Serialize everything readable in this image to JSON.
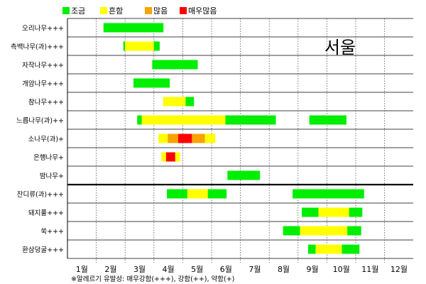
{
  "chart_data": {
    "type": "timeline",
    "title": "",
    "region_label": "서울",
    "legend": [
      {
        "key": "low",
        "label": "조금",
        "color": "#00ee00"
      },
      {
        "key": "common",
        "label": "흔함",
        "color": "#ffff00"
      },
      {
        "key": "many",
        "label": "많음",
        "color": "#f7a300"
      },
      {
        "key": "very_many",
        "label": "매우많음",
        "color": "#ff0000"
      }
    ],
    "x_axis": {
      "labels": [
        "1월",
        "2월",
        "3월",
        "4월",
        "5월",
        "6월",
        "7월",
        "8월",
        "9월",
        "10월",
        "11월",
        "12월"
      ],
      "range": [
        0,
        12
      ]
    },
    "footnote": "※알레르기 유발성: 매우강함(+++), 강함(++), 약함(+)",
    "rows": [
      {
        "label": "오리나무+++",
        "segments": [
          {
            "start": 1.25,
            "end": 3.33,
            "level": "low"
          }
        ]
      },
      {
        "label": "측백나무(과)+++",
        "segments": [
          {
            "start": 1.94,
            "end": 2.0,
            "level": "low"
          },
          {
            "start": 2.0,
            "end": 3.0,
            "level": "common"
          },
          {
            "start": 3.0,
            "end": 3.2,
            "level": "low"
          }
        ]
      },
      {
        "label": "자작나무+++",
        "segments": [
          {
            "start": 2.94,
            "end": 4.52,
            "level": "low"
          }
        ]
      },
      {
        "label": "개암나무+++",
        "segments": [
          {
            "start": 2.29,
            "end": 3.55,
            "level": "low"
          }
        ]
      },
      {
        "label": "참나무+++",
        "segments": [
          {
            "start": 3.32,
            "end": 4.1,
            "level": "common"
          },
          {
            "start": 4.1,
            "end": 4.39,
            "level": "low"
          }
        ]
      },
      {
        "label": "느릅나무(과)++",
        "segments": [
          {
            "start": 2.42,
            "end": 2.58,
            "level": "low"
          },
          {
            "start": 2.58,
            "end": 5.48,
            "level": "common"
          },
          {
            "start": 5.48,
            "end": 7.23,
            "level": "low"
          },
          {
            "start": 8.39,
            "end": 9.68,
            "level": "low"
          }
        ]
      },
      {
        "label": "소나무(과)+",
        "segments": [
          {
            "start": 3.16,
            "end": 3.48,
            "level": "common"
          },
          {
            "start": 3.48,
            "end": 3.84,
            "level": "many"
          },
          {
            "start": 3.84,
            "end": 4.32,
            "level": "very_many"
          },
          {
            "start": 4.32,
            "end": 4.77,
            "level": "many"
          },
          {
            "start": 4.77,
            "end": 5.13,
            "level": "common"
          }
        ]
      },
      {
        "label": "은행나무+",
        "segments": [
          {
            "start": 3.26,
            "end": 3.42,
            "level": "common"
          },
          {
            "start": 3.42,
            "end": 3.74,
            "level": "very_many"
          },
          {
            "start": 3.74,
            "end": 3.9,
            "level": "common"
          }
        ]
      },
      {
        "label": "밤나무+",
        "segments": [
          {
            "start": 5.55,
            "end": 6.68,
            "level": "low"
          }
        ]
      },
      {
        "label": "잔디류(과)+++",
        "segments": [
          {
            "start": 3.45,
            "end": 4.16,
            "level": "low"
          },
          {
            "start": 4.16,
            "end": 4.87,
            "level": "common"
          },
          {
            "start": 4.87,
            "end": 5.52,
            "level": "low"
          },
          {
            "start": 7.81,
            "end": 10.29,
            "level": "low"
          }
        ]
      },
      {
        "label": "돼지풀+++",
        "segments": [
          {
            "start": 8.13,
            "end": 8.71,
            "level": "low"
          },
          {
            "start": 8.71,
            "end": 9.77,
            "level": "common"
          },
          {
            "start": 9.77,
            "end": 10.23,
            "level": "low"
          }
        ]
      },
      {
        "label": "쑥+++",
        "segments": [
          {
            "start": 7.48,
            "end": 8.07,
            "level": "low"
          },
          {
            "start": 8.07,
            "end": 9.71,
            "level": "common"
          },
          {
            "start": 9.71,
            "end": 10.19,
            "level": "low"
          }
        ]
      },
      {
        "label": "환삼덩굴+++",
        "segments": [
          {
            "start": 8.35,
            "end": 8.61,
            "level": "low"
          },
          {
            "start": 8.61,
            "end": 9.52,
            "level": "common"
          },
          {
            "start": 9.52,
            "end": 10.13,
            "level": "low"
          }
        ]
      }
    ],
    "group_divider_after_row": 8,
    "grid": true
  }
}
